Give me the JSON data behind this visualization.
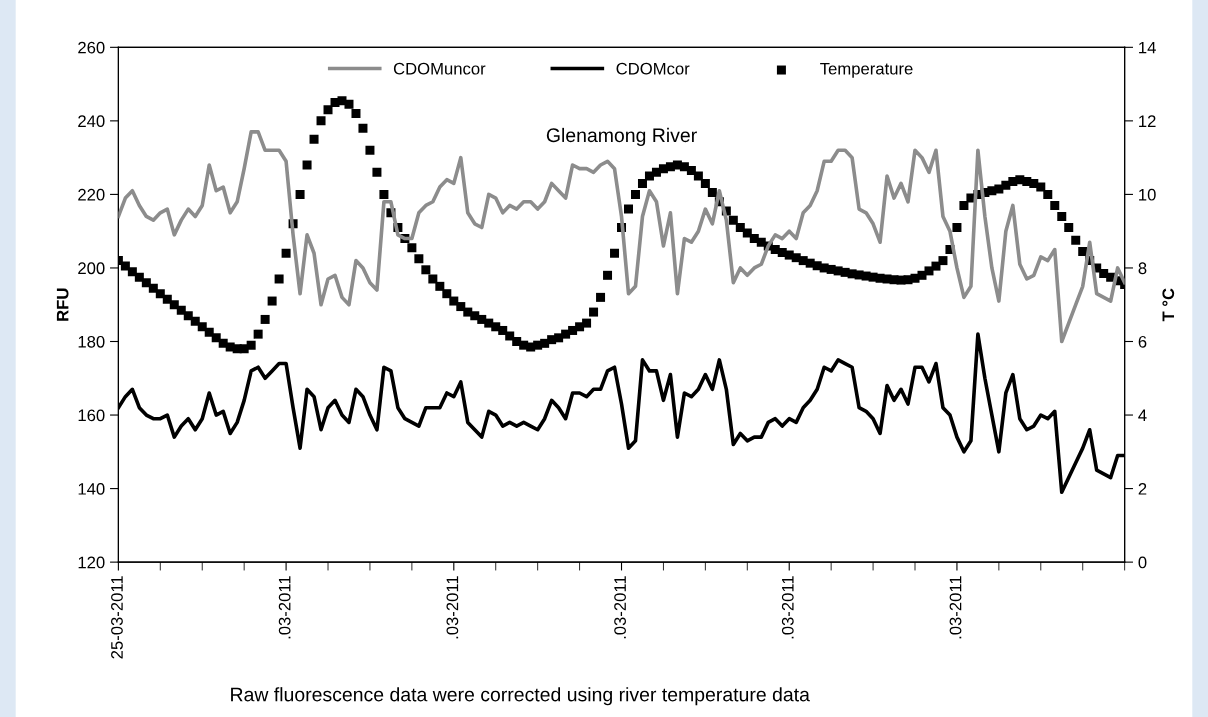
{
  "chart_data": {
    "type": "line",
    "title": "Glenamong River",
    "ylabel": "RFU",
    "y2label": "T °C",
    "annotations": [
      "Raw fluorescence data were corrected using river temperature data"
    ],
    "categories": [
      "25-03-2011",
      null,
      null,
      null,
      null,
      null,
      null,
      null,
      null,
      null,
      null,
      null,
      null,
      null,
      null,
      null,
      null,
      null,
      null,
      null,
      null,
      null,
      null,
      null,
      ".03-2011",
      null,
      null,
      null,
      null,
      null,
      null,
      null,
      null,
      null,
      null,
      null,
      null,
      null,
      null,
      null,
      null,
      null,
      null,
      null,
      null,
      null,
      null,
      null,
      ".03-2011",
      null,
      null,
      null,
      null,
      null,
      null,
      null,
      null,
      null,
      null,
      null,
      null,
      null,
      null,
      null,
      null,
      null,
      null,
      null,
      null,
      null,
      null,
      null,
      ".03-2011",
      null,
      null,
      null,
      null,
      null,
      null,
      null,
      null,
      null,
      null,
      null,
      null,
      null,
      null,
      null,
      null,
      null,
      null,
      null,
      null,
      null,
      null,
      null,
      ".03-2011",
      null,
      null,
      null,
      null,
      null,
      null,
      null,
      null,
      null,
      null,
      null,
      null,
      null,
      null,
      null,
      null,
      null,
      null,
      null,
      null,
      null,
      null,
      null,
      ".03-2011",
      null,
      null,
      null,
      null,
      null,
      null,
      null,
      null,
      null,
      null,
      null,
      null,
      null,
      null,
      null,
      null,
      null,
      null,
      null,
      null,
      null,
      null,
      null,
      null
    ],
    "series": [
      {
        "name": "CDOMuncor",
        "color": "#8c8c8c",
        "marker": "none",
        "values": [
          214,
          219,
          221,
          217,
          214,
          213,
          215,
          216,
          209,
          213,
          216,
          214,
          217,
          228,
          221,
          222,
          215,
          218,
          227,
          237,
          237,
          232,
          232,
          232,
          229,
          209,
          193,
          209,
          204,
          190,
          197,
          198,
          192,
          190,
          202,
          200,
          196,
          194,
          218,
          218,
          209,
          208,
          208,
          215,
          217,
          218,
          222,
          224,
          223,
          230,
          215,
          212,
          211,
          220,
          219,
          215,
          217,
          216,
          218,
          218,
          216,
          218,
          223,
          221,
          219,
          228,
          227,
          227,
          226,
          228,
          229,
          227,
          214,
          193,
          195,
          214,
          221,
          218,
          206,
          215,
          193,
          208,
          207,
          210,
          216,
          212,
          221,
          213,
          196,
          200,
          198,
          200,
          201,
          206,
          209,
          208,
          210,
          208,
          215,
          217,
          221,
          229,
          229,
          232,
          232,
          230,
          216,
          215,
          212,
          207,
          225,
          219,
          223,
          218,
          232,
          230,
          226,
          232,
          214,
          210,
          200,
          192,
          195,
          232,
          214,
          200,
          191,
          210,
          217,
          201,
          197,
          198,
          203,
          202,
          205,
          180,
          185,
          190,
          195,
          207,
          193,
          192,
          191,
          200,
          196
        ]
      },
      {
        "name": "CDOMcor",
        "color": "#000000",
        "marker": "none",
        "values": [
          162,
          165,
          167,
          162,
          160,
          159,
          159,
          160,
          154,
          157,
          159,
          156,
          159,
          166,
          160,
          161,
          155,
          158,
          164,
          172,
          173,
          170,
          172,
          174,
          174,
          162,
          151,
          167,
          165,
          156,
          162,
          164,
          160,
          158,
          167,
          165,
          160,
          156,
          173,
          172,
          162,
          159,
          158,
          157,
          162,
          162,
          162,
          166,
          165,
          169,
          158,
          156,
          154,
          161,
          160,
          157,
          158,
          157,
          158,
          157,
          156,
          159,
          164,
          162,
          159,
          166,
          166,
          165,
          167,
          167,
          172,
          173,
          163,
          151,
          153,
          175,
          172,
          172,
          164,
          171,
          154,
          166,
          165,
          167,
          171,
          167,
          175,
          167,
          152,
          155,
          153,
          154,
          154,
          158,
          159,
          157,
          159,
          158,
          162,
          164,
          167,
          173,
          172,
          175,
          174,
          173,
          162,
          161,
          159,
          155,
          168,
          164,
          167,
          163,
          173,
          173,
          169,
          174,
          162,
          160,
          154,
          150,
          153,
          182,
          170,
          160,
          150,
          166,
          171,
          159,
          156,
          157,
          160,
          159,
          161,
          139,
          143,
          147,
          151,
          156,
          145,
          144,
          143,
          149,
          149
        ]
      },
      {
        "name": "Temperature",
        "type": "scatter",
        "color": "#000000",
        "marker": "square",
        "axis": "y2",
        "values": [
          8.2,
          8.05,
          7.9,
          7.75,
          7.6,
          7.45,
          7.3,
          7.15,
          7.0,
          6.85,
          6.7,
          6.55,
          6.4,
          6.25,
          6.1,
          5.95,
          5.85,
          5.8,
          5.8,
          5.9,
          6.2,
          6.6,
          7.1,
          7.7,
          8.4,
          9.2,
          10.0,
          10.8,
          11.5,
          12.0,
          12.3,
          12.5,
          12.55,
          12.45,
          12.2,
          11.8,
          11.2,
          10.6,
          10.0,
          9.5,
          9.1,
          8.8,
          8.55,
          8.25,
          7.95,
          7.7,
          7.5,
          7.3,
          7.1,
          6.95,
          6.8,
          6.7,
          6.6,
          6.5,
          6.4,
          6.3,
          6.15,
          6.0,
          5.9,
          5.85,
          5.9,
          5.95,
          6.05,
          6.1,
          6.2,
          6.3,
          6.4,
          6.5,
          6.8,
          7.2,
          7.8,
          8.4,
          9.1,
          9.6,
          10.0,
          10.3,
          10.5,
          10.6,
          10.7,
          10.75,
          10.8,
          10.75,
          10.65,
          10.5,
          10.3,
          10.05,
          9.8,
          9.55,
          9.3,
          9.1,
          8.95,
          8.8,
          8.7,
          8.6,
          8.5,
          8.42,
          8.35,
          8.28,
          8.2,
          8.13,
          8.06,
          8.0,
          7.96,
          7.92,
          7.88,
          7.84,
          7.81,
          7.78,
          7.75,
          7.72,
          7.7,
          7.68,
          7.67,
          7.68,
          7.72,
          7.8,
          7.92,
          8.05,
          8.2,
          8.5,
          9.1,
          9.7,
          9.9,
          10.0,
          10.05,
          10.1,
          10.15,
          10.25,
          10.35,
          10.4,
          10.35,
          10.3,
          10.2,
          10.0,
          9.7,
          9.4,
          9.1,
          8.75,
          8.45,
          8.2,
          8.0,
          7.85,
          7.75,
          7.65,
          7.55
        ]
      }
    ],
    "ylim": [
      120,
      260
    ],
    "yticks": [
      120,
      140,
      160,
      180,
      200,
      220,
      240,
      260
    ],
    "y2lim": [
      0,
      14
    ],
    "y2ticks": [
      0,
      2,
      4,
      6,
      8,
      10,
      12,
      14
    ],
    "grid": false,
    "legend": "top"
  }
}
